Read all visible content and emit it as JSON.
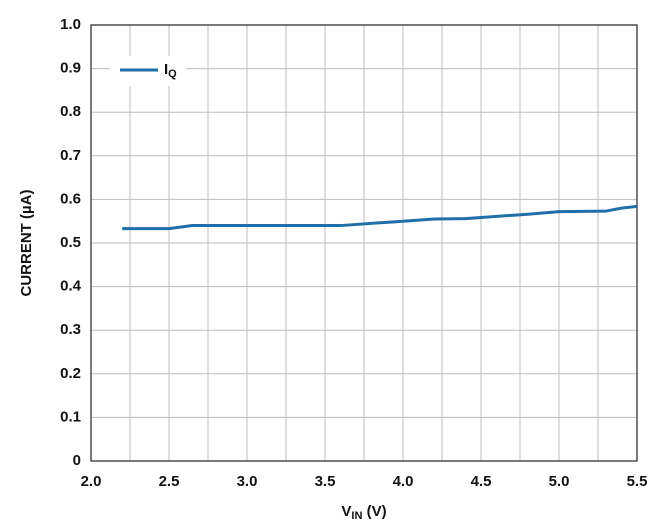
{
  "chart_data": {
    "type": "line",
    "ylabel": "CURRENT (µA)",
    "xlabel": {
      "main": "V",
      "sub": "IN",
      "rest": " (V)"
    },
    "x": [
      2.2,
      2.5,
      2.65,
      3.0,
      3.5,
      3.6,
      4.0,
      4.2,
      4.4,
      4.8,
      5.0,
      5.3,
      5.4,
      5.5
    ],
    "series": [
      {
        "name": "I",
        "name_sub": "Q",
        "color": "#1f6fa8",
        "values": [
          0.533,
          0.533,
          0.54,
          0.54,
          0.54,
          0.54,
          0.55,
          0.555,
          0.556,
          0.566,
          0.572,
          0.573,
          0.58,
          0.584
        ]
      }
    ],
    "xlim": [
      2.0,
      5.5
    ],
    "xticks": [
      {
        "value": 2.0,
        "label": "2.0"
      },
      {
        "value": 2.5,
        "label": "2.5"
      },
      {
        "value": 3.0,
        "label": "3.0"
      },
      {
        "value": 3.5,
        "label": "3.5"
      },
      {
        "value": 4.0,
        "label": "4.0"
      },
      {
        "value": 4.5,
        "label": "4.5"
      },
      {
        "value": 5.0,
        "label": "5.0"
      },
      {
        "value": 5.5,
        "label": "5.5"
      }
    ],
    "x_minor_grid": [
      2.25,
      2.75,
      3.25,
      3.75,
      4.25,
      4.75,
      5.25
    ],
    "ylim": [
      0,
      1.0
    ],
    "yticks": [
      0,
      0.1,
      0.2,
      0.3,
      0.4,
      0.5,
      0.6,
      0.7,
      0.8,
      0.9,
      {
        "value": 1.0,
        "label": "1.0"
      }
    ],
    "grid": true,
    "legend": "upper left"
  }
}
